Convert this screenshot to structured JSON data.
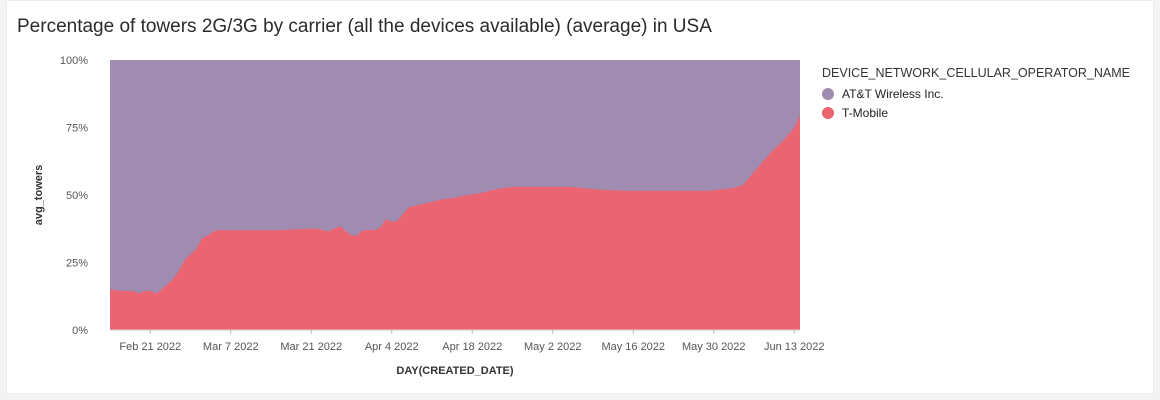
{
  "chart_data": {
    "type": "area",
    "stacked": "percent",
    "title": "Percentage of towers 2G/3G by carrier (all the devices available) (average) in USA",
    "xlabel": "DAY(CREATED_DATE)",
    "ylabel": "avg_towers",
    "ylim": [
      0,
      100
    ],
    "y_ticks": [
      "0%",
      "25%",
      "50%",
      "75%",
      "100%"
    ],
    "x_ticks": [
      "Feb 21 2022",
      "Mar 7 2022",
      "Mar 21 2022",
      "Apr 4 2022",
      "Apr 18 2022",
      "May 2 2022",
      "May 16 2022",
      "May 30 2022",
      "Jun 13 2022"
    ],
    "x_tick_days": [
      7,
      21,
      35,
      49,
      63,
      77,
      91,
      105,
      119
    ],
    "x_range_days": [
      0,
      120
    ],
    "legend_title": "DEVICE_NETWORK_CELLULAR_OPERATOR_NAME",
    "legend_position": "right",
    "series": [
      {
        "name": "T-Mobile",
        "color": "#eb6471",
        "points": [
          [
            0,
            15
          ],
          [
            2,
            14.5
          ],
          [
            4,
            14.5
          ],
          [
            5,
            13.5
          ],
          [
            6,
            14.5
          ],
          [
            7,
            14.5
          ],
          [
            8,
            13.5
          ],
          [
            9,
            15
          ],
          [
            10,
            17
          ],
          [
            11,
            19
          ],
          [
            12,
            22
          ],
          [
            13,
            26
          ],
          [
            14,
            28
          ],
          [
            15,
            30
          ],
          [
            16,
            34
          ],
          [
            17,
            35
          ],
          [
            18,
            36.5
          ],
          [
            19,
            37
          ],
          [
            21,
            37
          ],
          [
            25,
            37
          ],
          [
            30,
            37
          ],
          [
            34,
            37.5
          ],
          [
            36,
            37.5
          ],
          [
            38,
            36.5
          ],
          [
            40,
            38.5
          ],
          [
            41,
            36.5
          ],
          [
            42,
            35
          ],
          [
            43,
            35
          ],
          [
            44,
            37
          ],
          [
            46,
            37
          ],
          [
            47,
            38
          ],
          [
            48,
            41
          ],
          [
            49,
            40
          ],
          [
            50,
            40.5
          ],
          [
            51,
            43
          ],
          [
            52,
            45.5
          ],
          [
            54,
            46.5
          ],
          [
            56,
            47.5
          ],
          [
            58,
            48.5
          ],
          [
            60,
            49
          ],
          [
            62,
            50
          ],
          [
            64,
            50.5
          ],
          [
            66,
            51.5
          ],
          [
            68,
            52.5
          ],
          [
            70,
            53
          ],
          [
            80,
            53
          ],
          [
            85,
            52
          ],
          [
            90,
            51.5
          ],
          [
            100,
            51.5
          ],
          [
            104,
            51.5
          ],
          [
            108,
            52.5
          ],
          [
            110,
            53.5
          ],
          [
            111,
            56
          ],
          [
            113,
            61
          ],
          [
            115,
            66
          ],
          [
            117,
            70
          ],
          [
            119,
            75
          ],
          [
            120,
            79.5
          ]
        ]
      },
      {
        "name": "AT&T Wireless Inc.",
        "color": "#a08cb0",
        "fill_to_percent": 100
      }
    ]
  }
}
